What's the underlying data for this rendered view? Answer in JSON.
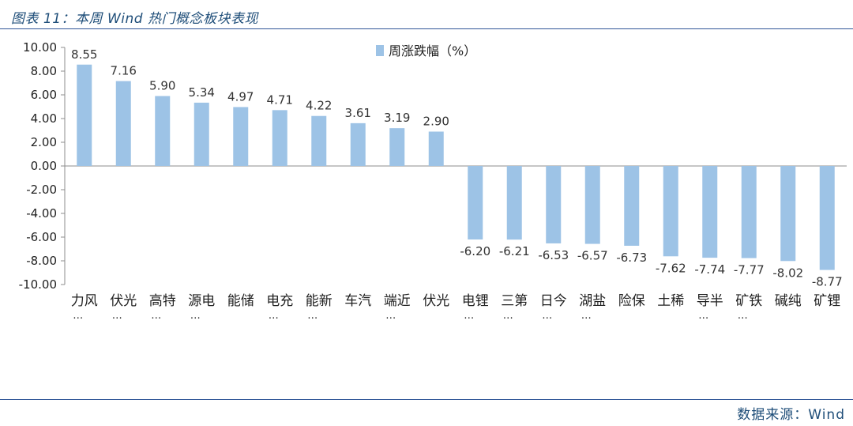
{
  "figure": {
    "title": "图表 11：本周 Wind 热门概念板块表现",
    "source": "数据来源：Wind"
  },
  "chart_data": {
    "type": "bar",
    "categories": [
      "力风…",
      "伏光…",
      "高特…",
      "源电…",
      "能储",
      "电充…",
      "能新…",
      "车汽",
      "端近…",
      "伏光",
      "电锂…",
      "三第…",
      "日今…",
      "湖盐…",
      "险保",
      "土稀",
      "导半…",
      "矿铁…",
      "碱纯",
      "矿锂"
    ],
    "series": [
      {
        "name": "周涨跌幅（%）",
        "values": [
          8.55,
          7.16,
          5.9,
          5.34,
          4.97,
          4.71,
          4.22,
          3.61,
          3.19,
          2.9,
          -6.2,
          -6.21,
          -6.53,
          -6.57,
          -6.73,
          -7.62,
          -7.74,
          -7.77,
          -8.02,
          -8.77
        ]
      }
    ],
    "value_labels": [
      "8.55",
      "7.16",
      "5.90",
      "5.34",
      "4.97",
      "4.71",
      "4.22",
      "3.61",
      "3.19",
      "2.90",
      "-6.20",
      "-6.21",
      "-6.53",
      "-6.57",
      "-6.73",
      "-7.62",
      "-7.74",
      "-7.77",
      "-8.02",
      "-8.77"
    ],
    "ylim": [
      -10,
      10
    ],
    "y_ticks": [
      "10.00",
      "8.00",
      "6.00",
      "4.00",
      "2.00",
      "0.00",
      "-2.00",
      "-4.00",
      "-6.00",
      "-8.00",
      "-10.00"
    ],
    "xlabel": "",
    "ylabel": "",
    "legend_position": "top-center",
    "grid": false,
    "bar_color": "#9dc3e6"
  }
}
